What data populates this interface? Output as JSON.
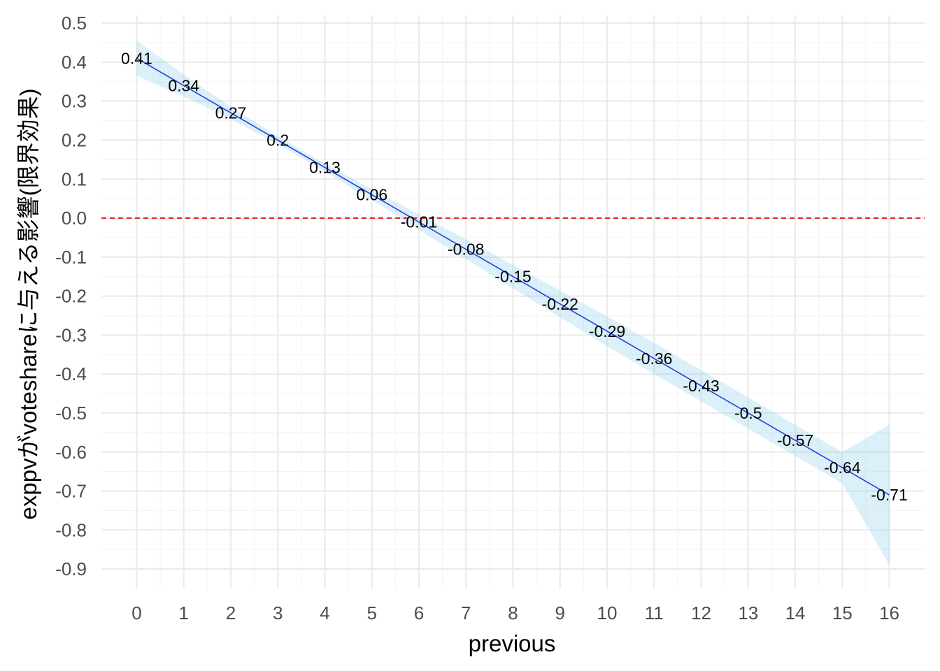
{
  "chart_data": {
    "type": "line",
    "title": "",
    "xlabel": "previous",
    "ylabel": "exppvがvoteshareに与える影響(限界効果)",
    "xlim": [
      -0.75,
      16.75
    ],
    "ylim": [
      -0.95,
      0.52
    ],
    "x_ticks": [
      0,
      1,
      2,
      3,
      4,
      5,
      6,
      7,
      8,
      9,
      10,
      11,
      12,
      13,
      14,
      15,
      16
    ],
    "x_tick_labels": [
      "0",
      "1",
      "2",
      "3",
      "4",
      "5",
      "6",
      "7",
      "8",
      "9",
      "10",
      "11",
      "12",
      "13",
      "14",
      "15",
      "16"
    ],
    "y_ticks": [
      0.5,
      0.4,
      0.3,
      0.2,
      0.1,
      0.0,
      -0.1,
      -0.2,
      -0.3,
      -0.4,
      -0.5,
      -0.6,
      -0.7,
      -0.8,
      -0.9
    ],
    "y_tick_labels": [
      "0.5",
      "0.4",
      "0.3",
      "0.2",
      "0.1",
      "0.0",
      "-0.1",
      "-0.2",
      "-0.3",
      "-0.4",
      "-0.5",
      "-0.6",
      "-0.7",
      "-0.8",
      "-0.9"
    ],
    "grid": true,
    "series": [
      {
        "x": [
          0,
          1,
          2,
          3,
          4,
          5,
          6,
          7,
          8,
          9,
          10,
          11,
          12,
          13,
          14,
          15,
          16
        ],
        "y": [
          0.41,
          0.34,
          0.27,
          0.2,
          0.13,
          0.06,
          -0.01,
          -0.08,
          -0.15,
          -0.22,
          -0.29,
          -0.36,
          -0.43,
          -0.5,
          -0.57,
          -0.64,
          -0.71
        ],
        "labels": [
          "0.41",
          "0.34",
          "0.27",
          "0.2",
          "0.13",
          "0.06",
          "-0.01",
          "-0.08",
          "-0.15",
          "-0.22",
          "-0.29",
          "-0.36",
          "-0.43",
          "-0.5",
          "-0.57",
          "-0.64",
          "-0.71"
        ],
        "ci_upper": [
          0.455,
          0.368,
          0.286,
          0.21,
          0.14,
          0.074,
          0.01,
          -0.055,
          -0.12,
          -0.186,
          -0.252,
          -0.32,
          -0.39,
          -0.46,
          -0.53,
          -0.6,
          -0.53
        ],
        "ci_lower": [
          0.365,
          0.312,
          0.254,
          0.19,
          0.12,
          0.046,
          -0.03,
          -0.105,
          -0.18,
          -0.254,
          -0.328,
          -0.4,
          -0.47,
          -0.54,
          -0.61,
          -0.68,
          -0.89
        ]
      }
    ],
    "reference_line": {
      "y": 0.0
    },
    "colors": {
      "line": "#2a3fe0",
      "ribbon": "#87ceeb",
      "reference": "#e31a1c",
      "grid_major": "#ebebeb",
      "grid_minor": "#f5f5f5"
    }
  }
}
